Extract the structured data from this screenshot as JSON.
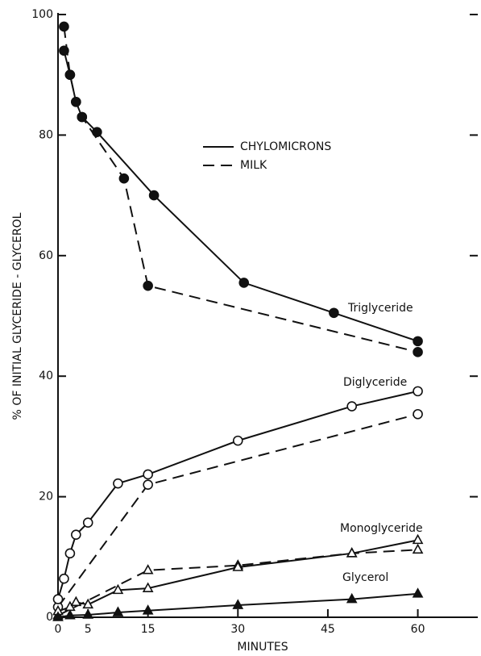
{
  "chart_data": {
    "type": "line",
    "xlabel": "MINUTES",
    "ylabel": "% OF INITIAL GLYCERIDE - GLYCEROL",
    "xlim": [
      0,
      70
    ],
    "ylim": [
      0,
      100
    ],
    "xticks": [
      0,
      5,
      15,
      30,
      45,
      60
    ],
    "yticks": [
      0,
      20,
      40,
      60,
      80,
      100
    ],
    "legend": {
      "chylomicrons": "CHYLOMICRONS",
      "milk": "MILK"
    },
    "dash": {
      "chylomicrons": "none",
      "milk": "14,8"
    },
    "color": "#111111",
    "components": [
      {
        "name": "Triglyceride",
        "marker": "filled-circle",
        "chylomicrons": {
          "x": [
            1,
            2,
            3,
            4,
            6.5,
            16,
            31,
            46,
            60
          ],
          "values": [
            94,
            90,
            85.5,
            83,
            80.5,
            70,
            55.5,
            50.5,
            45.8
          ]
        },
        "milk": {
          "x": [
            1,
            2,
            3,
            4,
            11,
            15,
            60
          ],
          "values": [
            98,
            90,
            85.5,
            83,
            72.8,
            55,
            44
          ]
        }
      },
      {
        "name": "Diglyceride",
        "marker": "open-circle",
        "chylomicrons": {
          "x": [
            0,
            1,
            2,
            3,
            5,
            10,
            15,
            30,
            49,
            60
          ],
          "values": [
            3,
            6.4,
            10.6,
            13.7,
            15.7,
            22.2,
            23.7,
            29.3,
            35,
            37.5
          ]
        },
        "milk": {
          "x": [
            0,
            15,
            60
          ],
          "values": [
            1.7,
            22,
            33.7
          ]
        }
      },
      {
        "name": "Monoglyceride",
        "marker": "open-triangle",
        "chylomicrons": {
          "x": [
            0,
            2,
            3,
            5,
            10,
            15,
            30,
            49,
            60
          ],
          "values": [
            1,
            1.7,
            2.5,
            2.1,
            4.5,
            4.8,
            8.3,
            10.6,
            12.8
          ]
        },
        "milk": {
          "x": [
            0,
            15,
            30,
            49,
            60
          ],
          "values": [
            0.3,
            7.8,
            8.6,
            10.6,
            11.2
          ]
        }
      },
      {
        "name": "Glycerol",
        "marker": "filled-triangle",
        "chylomicrons": {
          "x": [
            0,
            2,
            5,
            10,
            15,
            30,
            49,
            60
          ],
          "values": [
            0,
            0.3,
            0.4,
            0.8,
            1.1,
            2,
            3,
            3.9
          ]
        }
      }
    ]
  }
}
